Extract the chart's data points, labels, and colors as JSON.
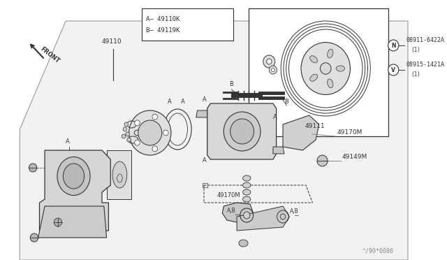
{
  "bg_color": "#ffffff",
  "box_bg": "#ffffff",
  "line_color": "#888888",
  "dark_line": "#333333",
  "part_color": "#e8e8e8",
  "watermark": "^/90*0086",
  "legend_text1": "A— 49110K",
  "legend_text2": "B— 49119K"
}
